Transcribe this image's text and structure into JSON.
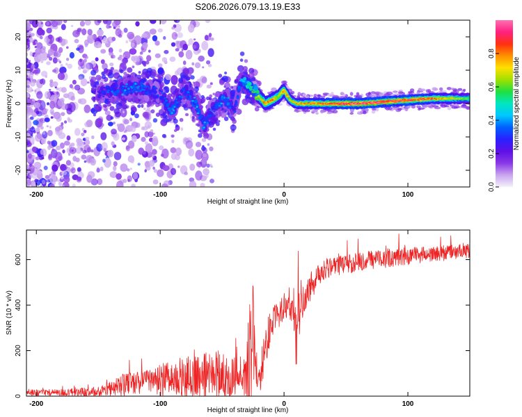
{
  "title": "S206.2026.079.13.19.E33",
  "chart_data": [
    {
      "type": "heatmap",
      "xlabel": "Height of straight line (km)",
      "ylabel": "Frequency (Hz)",
      "xlim": [
        -208,
        150
      ],
      "ylim": [
        -25,
        25
      ],
      "xticks": [
        -200,
        -100,
        0,
        100
      ],
      "xtick_labels": [
        "-200",
        "-100",
        "0",
        "100"
      ],
      "yticks": [
        -20,
        -10,
        0,
        10,
        20
      ],
      "ytick_labels": [
        "-20",
        "-10",
        "0",
        "10",
        "20"
      ],
      "colorbar": {
        "label": "Normalized spectral amplitude",
        "range": [
          0,
          1
        ],
        "ticks": [
          0.0,
          0.2,
          0.4,
          0.6,
          0.8
        ],
        "tick_labels": [
          "0.0",
          "0.2",
          "0.4",
          "0.6",
          "0.8"
        ],
        "colors": [
          "#f4f0fb",
          "#c9a5ef",
          "#8a38e6",
          "#5e10e6",
          "#2a20ff",
          "#0060ff",
          "#00c8ff",
          "#00e6c0",
          "#20e040",
          "#a0e000",
          "#ffe000",
          "#ff9000",
          "#ff3010",
          "#ff2080",
          "#ff70b0"
        ]
      },
      "ridge": {
        "x": [
          -150,
          -140,
          -130,
          -120,
          -110,
          -100,
          -95,
          -90,
          -85,
          -80,
          -75,
          -70,
          -65,
          -60,
          -55,
          -50,
          -45,
          -40,
          -35,
          -30,
          -25,
          -20,
          -15,
          -10,
          -5,
          0,
          5,
          10,
          20,
          40,
          60,
          80,
          100,
          120,
          150
        ],
        "y": [
          3,
          4,
          4,
          5,
          4,
          3,
          0,
          -2,
          1,
          4,
          2,
          -1,
          -7,
          -3,
          -1,
          1,
          1,
          -3,
          7,
          6,
          4,
          2,
          0,
          1,
          2,
          4,
          1,
          0,
          0,
          0,
          0,
          0.5,
          1,
          1.5,
          1.5
        ],
        "amp": [
          0.3,
          0.35,
          0.4,
          0.4,
          0.35,
          0.3,
          0.4,
          0.4,
          0.35,
          0.35,
          0.4,
          0.4,
          0.4,
          0.35,
          0.35,
          0.4,
          0.4,
          0.3,
          0.45,
          0.5,
          0.6,
          0.7,
          0.75,
          0.85,
          0.7,
          0.8,
          0.7,
          0.75,
          0.8,
          0.9,
          0.95,
          0.95,
          0.9,
          0.85,
          0.6
        ]
      }
    },
    {
      "type": "line",
      "xlabel": "Height of straight line (km)",
      "ylabel": "SNR (10 * v/v)",
      "xlim": [
        -208,
        150
      ],
      "ylim": [
        0,
        730
      ],
      "xticks": [
        -200,
        -100,
        0,
        100
      ],
      "xtick_labels": [
        "-200",
        "-100",
        "0",
        "100"
      ],
      "yticks": [
        0,
        200,
        400,
        600
      ],
      "ytick_labels": [
        "0",
        "200",
        "400",
        "600"
      ],
      "color": "#ee2222",
      "envelope": {
        "x": [
          -208,
          -180,
          -150,
          -130,
          -110,
          -90,
          -70,
          -50,
          -40,
          -32,
          -28,
          -24,
          -22,
          -20,
          -16,
          -12,
          -8,
          -4,
          0,
          4,
          8,
          10,
          12,
          16,
          20,
          26,
          30,
          40,
          50,
          60,
          70,
          80,
          90,
          100,
          110,
          120,
          130,
          140,
          150
        ],
        "base": [
          15,
          15,
          20,
          50,
          65,
          75,
          85,
          90,
          90,
          60,
          130,
          300,
          120,
          80,
          180,
          280,
          330,
          360,
          390,
          420,
          400,
          300,
          380,
          430,
          470,
          520,
          550,
          570,
          580,
          590,
          600,
          605,
          610,
          615,
          620,
          625,
          630,
          635,
          640
        ],
        "noise": [
          20,
          22,
          30,
          70,
          80,
          120,
          150,
          160,
          130,
          100,
          450,
          300,
          150,
          100,
          150,
          120,
          100,
          90,
          90,
          100,
          150,
          300,
          200,
          100,
          90,
          80,
          70,
          60,
          60,
          60,
          60,
          60,
          60,
          55,
          55,
          50,
          50,
          45,
          45
        ]
      }
    }
  ]
}
